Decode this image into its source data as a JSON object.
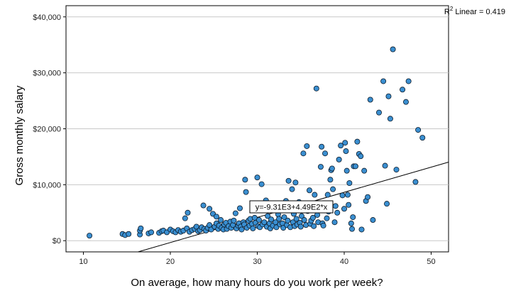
{
  "chart_data": {
    "type": "scatter",
    "xlabel": "On average, how many hours do you work per week?",
    "ylabel": "Gross monthly salary",
    "xlim": [
      8,
      52
    ],
    "ylim": [
      -2000,
      42000
    ],
    "x_ticks": [
      10,
      20,
      30,
      40,
      50
    ],
    "y_ticks": [
      0,
      10000,
      20000,
      30000,
      40000
    ],
    "y_tick_labels": [
      "$0",
      "$10,000",
      "$20,000",
      "$30,000",
      "$40,000"
    ],
    "grid": "horizontal",
    "r2_label": "R",
    "r2_sup": "2",
    "r2_text": " Linear = 0.419",
    "fit": {
      "intercept": -9310,
      "slope": 449,
      "equation": "y=-9.31E3+4.49E2*x"
    },
    "colors": {
      "point_fill": "#3a8fd1",
      "point_stroke": "#0d1b2a",
      "grid": "#c8c8c8",
      "fit_line": "#000000"
    },
    "points": [
      [
        10.7,
        900
      ],
      [
        14.5,
        1200
      ],
      [
        14.8,
        1000
      ],
      [
        15.2,
        1200
      ],
      [
        16.5,
        1100
      ],
      [
        16.5,
        1800
      ],
      [
        16.6,
        2200
      ],
      [
        17.5,
        1300
      ],
      [
        17.8,
        1500
      ],
      [
        18.7,
        1400
      ],
      [
        19.0,
        1700
      ],
      [
        19.2,
        1800
      ],
      [
        19.6,
        1500
      ],
      [
        20.0,
        2000
      ],
      [
        20.3,
        1700
      ],
      [
        20.6,
        1500
      ],
      [
        20.9,
        1900
      ],
      [
        21.2,
        1600
      ],
      [
        21.5,
        1800
      ],
      [
        21.7,
        4000
      ],
      [
        22.0,
        5000
      ],
      [
        21.9,
        2200
      ],
      [
        22.2,
        1600
      ],
      [
        22.5,
        1900
      ],
      [
        22.8,
        2100
      ],
      [
        23.0,
        2500
      ],
      [
        23.2,
        1700
      ],
      [
        23.4,
        1900
      ],
      [
        23.6,
        2400
      ],
      [
        23.8,
        6300
      ],
      [
        23.9,
        2100
      ],
      [
        24.1,
        1800
      ],
      [
        24.3,
        2300
      ],
      [
        24.5,
        2800
      ],
      [
        24.5,
        5700
      ],
      [
        24.7,
        2000
      ],
      [
        24.9,
        4800
      ],
      [
        25.1,
        2500
      ],
      [
        25.3,
        4300
      ],
      [
        25.3,
        3100
      ],
      [
        25.5,
        2100
      ],
      [
        25.6,
        2700
      ],
      [
        25.8,
        3700
      ],
      [
        25.9,
        2300
      ],
      [
        26.1,
        2000
      ],
      [
        26.2,
        2900
      ],
      [
        26.4,
        3200
      ],
      [
        26.5,
        2100
      ],
      [
        26.7,
        2600
      ],
      [
        26.9,
        3400
      ],
      [
        27.0,
        2300
      ],
      [
        27.2,
        2800
      ],
      [
        27.3,
        3600
      ],
      [
        27.5,
        4900
      ],
      [
        27.6,
        2200
      ],
      [
        27.8,
        2700
      ],
      [
        27.9,
        3100
      ],
      [
        28.0,
        5800
      ],
      [
        28.1,
        2500
      ],
      [
        28.2,
        2000
      ],
      [
        28.4,
        3300
      ],
      [
        28.5,
        2900
      ],
      [
        28.6,
        10900
      ],
      [
        28.7,
        8700
      ],
      [
        28.8,
        2300
      ],
      [
        29.0,
        3600
      ],
      [
        29.1,
        2700
      ],
      [
        29.2,
        3900
      ],
      [
        29.4,
        3000
      ],
      [
        29.5,
        2200
      ],
      [
        29.7,
        4100
      ],
      [
        29.8,
        3200
      ],
      [
        30.0,
        11300
      ],
      [
        30.1,
        2600
      ],
      [
        30.2,
        3700
      ],
      [
        30.3,
        2400
      ],
      [
        30.5,
        10100
      ],
      [
        30.6,
        2900
      ],
      [
        30.8,
        3300
      ],
      [
        31.0,
        7200
      ],
      [
        31.1,
        2500
      ],
      [
        31.2,
        4400
      ],
      [
        31.4,
        3100
      ],
      [
        31.5,
        2200
      ],
      [
        31.6,
        3800
      ],
      [
        31.8,
        2700
      ],
      [
        32.0,
        5500
      ],
      [
        32.1,
        3300
      ],
      [
        32.2,
        2400
      ],
      [
        32.4,
        4700
      ],
      [
        32.5,
        3900
      ],
      [
        32.6,
        2900
      ],
      [
        32.8,
        5800
      ],
      [
        32.9,
        3100
      ],
      [
        33.0,
        2300
      ],
      [
        33.1,
        4200
      ],
      [
        33.3,
        7100
      ],
      [
        33.4,
        2800
      ],
      [
        33.5,
        3600
      ],
      [
        33.6,
        10700
      ],
      [
        33.8,
        2400
      ],
      [
        34.0,
        9200
      ],
      [
        34.1,
        3300
      ],
      [
        34.2,
        4800
      ],
      [
        34.3,
        2600
      ],
      [
        34.4,
        10400
      ],
      [
        34.5,
        3900
      ],
      [
        34.6,
        2900
      ],
      [
        34.8,
        6900
      ],
      [
        34.9,
        3200
      ],
      [
        35.0,
        2500
      ],
      [
        35.1,
        4400
      ],
      [
        35.3,
        15600
      ],
      [
        35.4,
        3700
      ],
      [
        35.6,
        2800
      ],
      [
        35.7,
        16900
      ],
      [
        35.8,
        5300
      ],
      [
        36.0,
        9000
      ],
      [
        36.1,
        3000
      ],
      [
        36.2,
        3600
      ],
      [
        36.4,
        4100
      ],
      [
        36.5,
        2600
      ],
      [
        36.6,
        8200
      ],
      [
        36.8,
        27200
      ],
      [
        36.9,
        4600
      ],
      [
        37.0,
        3300
      ],
      [
        37.2,
        5700
      ],
      [
        37.3,
        13200
      ],
      [
        37.4,
        16800
      ],
      [
        37.5,
        3100
      ],
      [
        37.6,
        2700
      ],
      [
        37.8,
        15600
      ],
      [
        38.0,
        4000
      ],
      [
        38.1,
        8200
      ],
      [
        38.2,
        5200
      ],
      [
        38.4,
        10900
      ],
      [
        38.5,
        12600
      ],
      [
        38.6,
        12900
      ],
      [
        38.7,
        9200
      ],
      [
        38.9,
        3300
      ],
      [
        39.0,
        6200
      ],
      [
        39.2,
        5000
      ],
      [
        39.4,
        14500
      ],
      [
        39.6,
        17000
      ],
      [
        39.8,
        8100
      ],
      [
        40.0,
        5700
      ],
      [
        40.1,
        17500
      ],
      [
        40.2,
        16000
      ],
      [
        40.3,
        12500
      ],
      [
        40.4,
        8200
      ],
      [
        40.5,
        6400
      ],
      [
        40.6,
        10300
      ],
      [
        40.8,
        3100
      ],
      [
        40.9,
        2100
      ],
      [
        41.0,
        4200
      ],
      [
        41.1,
        13300
      ],
      [
        41.3,
        13300
      ],
      [
        41.5,
        17700
      ],
      [
        41.7,
        15500
      ],
      [
        41.9,
        15100
      ],
      [
        42.0,
        2000
      ],
      [
        42.3,
        12500
      ],
      [
        42.5,
        7100
      ],
      [
        42.7,
        7800
      ],
      [
        43.0,
        25200
      ],
      [
        43.3,
        3700
      ],
      [
        44.0,
        22900
      ],
      [
        44.5,
        28500
      ],
      [
        44.7,
        13400
      ],
      [
        44.9,
        6600
      ],
      [
        45.1,
        25800
      ],
      [
        45.3,
        21800
      ],
      [
        45.6,
        34200
      ],
      [
        46.0,
        12700
      ],
      [
        46.7,
        27000
      ],
      [
        47.1,
        24800
      ],
      [
        47.4,
        28500
      ],
      [
        48.2,
        10500
      ],
      [
        48.5,
        19800
      ],
      [
        49.0,
        18400
      ]
    ]
  }
}
